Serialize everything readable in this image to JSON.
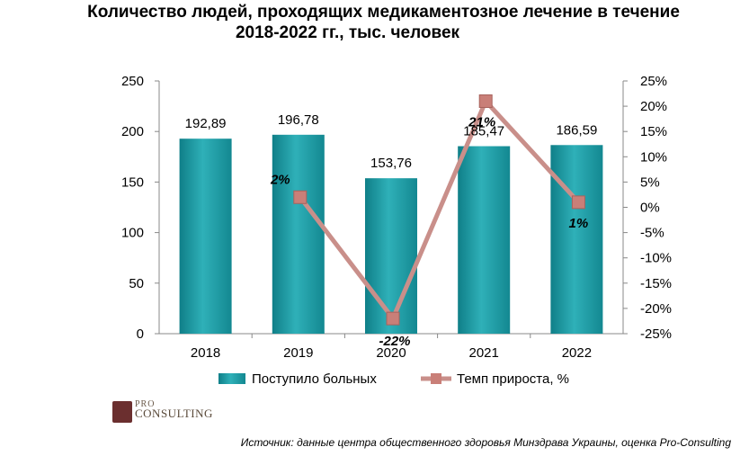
{
  "title": {
    "line1": "Количество людей, проходящих медикаментозное лечение в течение",
    "line2": "2018-2022 гг., тыс. человек"
  },
  "chart_data": {
    "type": "bar",
    "categories": [
      "2018",
      "2019",
      "2020",
      "2021",
      "2022"
    ],
    "series": [
      {
        "name": "Поступило больных",
        "type": "bar",
        "axis": "left",
        "values": [
          192.89,
          196.78,
          153.76,
          185.47,
          186.59
        ],
        "labels": [
          "192,89",
          "196,78",
          "153,76",
          "185,47",
          "186,59"
        ],
        "color": "#1f9aa3"
      },
      {
        "name": "Темп прироста, %",
        "type": "line",
        "axis": "right",
        "values": [
          null,
          2,
          -22,
          21,
          1
        ],
        "labels": [
          "",
          "2%",
          "-22%",
          "21%",
          "1%"
        ],
        "color": "#c98f8a",
        "marker_color": "#c97f78"
      }
    ],
    "y_left": {
      "ylim": [
        0,
        250
      ],
      "ticks": [
        "0",
        "50",
        "100",
        "150",
        "200",
        "250"
      ]
    },
    "y_right": {
      "ylim": [
        -25,
        25
      ],
      "ticks": [
        "-25%",
        "-20%",
        "-15%",
        "-10%",
        "-5%",
        "0%",
        "5%",
        "10%",
        "15%",
        "20%",
        "25%"
      ]
    },
    "legend_position": "bottom"
  },
  "logo": {
    "pro": "PRO",
    "name": "CONSULTING"
  },
  "source": "Источник: данные центра общественного здоровья Минздрава Украины, оценка Pro-Consulting"
}
